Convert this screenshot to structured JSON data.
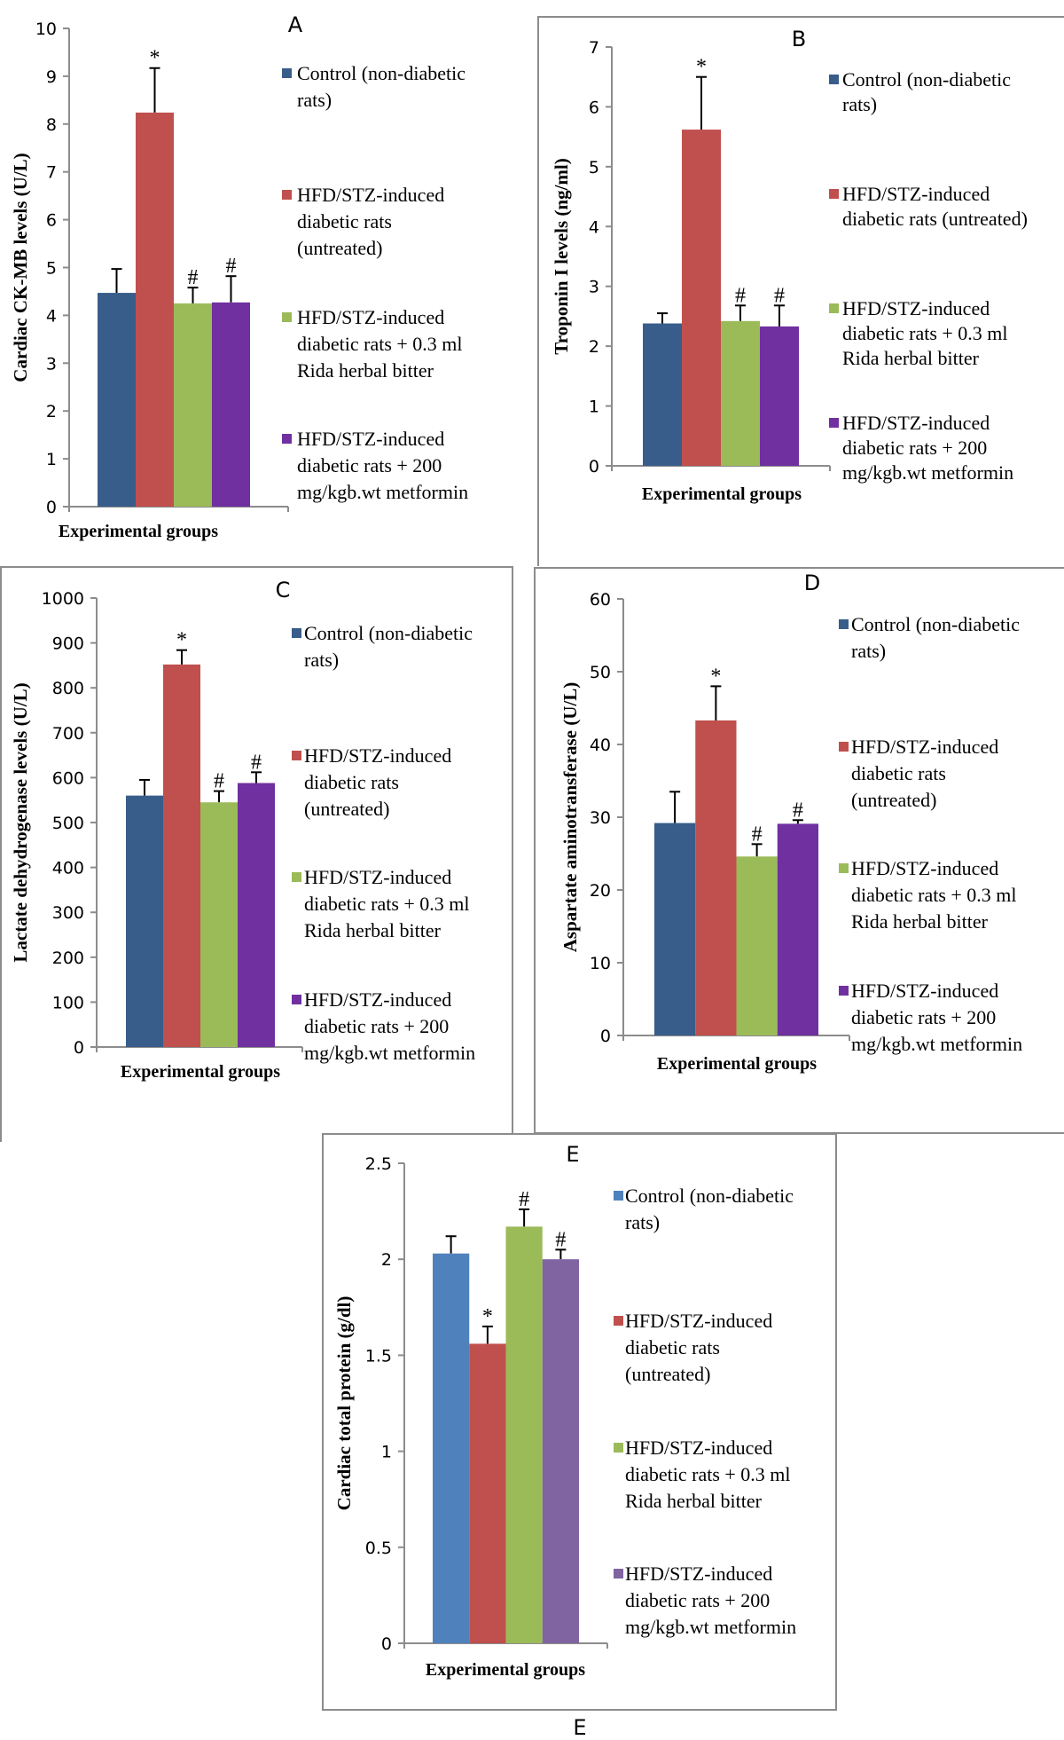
{
  "chart_data": [
    {
      "type": "bar",
      "panel": "A",
      "title": "A",
      "ylabel": "Cardiac CK-MB levels (U/L)",
      "xlabel": "Experimental groups",
      "ylim": [
        0,
        10
      ],
      "yticks": [
        0,
        1,
        2,
        3,
        4,
        5,
        6,
        7,
        8,
        9,
        10
      ],
      "categories": [
        "Control (non-diabetic rats)",
        "HFD/STZ-induced diabetic rats (untreated)",
        "HFD/STZ-induced diabetic rats + 0.3 ml Rida herbal bitter",
        "HFD/STZ-induced diabetic rats + 200 mg/kgb.wt metformin"
      ],
      "values": [
        4.47,
        8.24,
        4.25,
        4.27
      ],
      "error_upper": [
        0.5,
        0.93,
        0.33,
        0.55
      ],
      "significance": [
        "",
        "*",
        "#",
        "#"
      ],
      "legend_position": "right",
      "legend": [
        [
          "Control (non-diabetic",
          "rats)"
        ],
        [
          "HFD/STZ-induced",
          "diabetic rats",
          "(untreated)"
        ],
        [
          "HFD/STZ-induced",
          "diabetic rats + 0.3 ml",
          "Rida herbal bitter"
        ],
        [
          "HFD/STZ-induced",
          "diabetic rats + 200",
          "mg/kgb.wt metformin"
        ]
      ],
      "colors": [
        "#385D8A",
        "#C0504D",
        "#9BBB59",
        "#7030A0"
      ]
    },
    {
      "type": "bar",
      "panel": "B",
      "title": "B",
      "ylabel": "Troponin I levels (ng/ml)",
      "xlabel": "Experimental groups",
      "ylim": [
        0,
        7
      ],
      "yticks": [
        0,
        1,
        2,
        3,
        4,
        5,
        6,
        7
      ],
      "categories": [
        "Control (non-diabetic rats)",
        "HFD/STZ-induced diabetic rats (untreated)",
        "HFD/STZ-induced diabetic rats + 0.3 ml Rida herbal bitter",
        "HFD/STZ-induced diabetic rats + 200 mg/kgb.wt metformin"
      ],
      "values": [
        2.38,
        5.62,
        2.42,
        2.33
      ],
      "error_upper": [
        0.17,
        0.88,
        0.26,
        0.35
      ],
      "significance": [
        "",
        "*",
        "#",
        "#"
      ],
      "legend_position": "right",
      "legend": [
        [
          "Control (non-diabetic",
          "rats)"
        ],
        [
          "HFD/STZ-induced",
          "diabetic rats (untreated)"
        ],
        [
          "HFD/STZ-induced",
          "diabetic rats + 0.3 ml",
          "Rida herbal bitter"
        ],
        [
          "HFD/STZ-induced",
          "diabetic rats + 200",
          "mg/kgb.wt metformin"
        ]
      ],
      "colors": [
        "#385D8A",
        "#C0504D",
        "#9BBB59",
        "#7030A0"
      ]
    },
    {
      "type": "bar",
      "panel": "C",
      "title": "C",
      "ylabel": "Lactate dehydrogenase levels (U/L)",
      "xlabel": "Experimental groups",
      "ylim": [
        0,
        1000
      ],
      "yticks": [
        0,
        100,
        200,
        300,
        400,
        500,
        600,
        700,
        800,
        900,
        1000
      ],
      "categories": [
        "Control (non-diabetic rats)",
        "HFD/STZ-induced diabetic rats (untreated)",
        "HFD/STZ-induced diabetic rats + 0.3 ml Rida herbal bitter",
        "HFD/STZ-induced diabetic rats + 200 mg/kgb.wt metformin"
      ],
      "values": [
        560,
        852,
        545,
        588
      ],
      "error_upper": [
        35,
        32,
        25,
        24
      ],
      "significance": [
        "",
        "*",
        "#",
        "#"
      ],
      "legend_position": "right",
      "legend": [
        [
          "Control (non-diabetic",
          "rats)"
        ],
        [
          "HFD/STZ-induced",
          "diabetic rats",
          "(untreated)"
        ],
        [
          "HFD/STZ-induced",
          "diabetic rats + 0.3 ml",
          "Rida herbal bitter"
        ],
        [
          "HFD/STZ-induced",
          "diabetic rats + 200",
          "mg/kgb.wt metformin"
        ]
      ],
      "colors": [
        "#385D8A",
        "#C0504D",
        "#9BBB59",
        "#7030A0"
      ]
    },
    {
      "type": "bar",
      "panel": "D",
      "title": "D",
      "ylabel": "Aspartate aminotransferase (U/L)",
      "xlabel": "Experimental groups",
      "ylim": [
        0,
        60
      ],
      "yticks": [
        0,
        10,
        20,
        30,
        40,
        50,
        60
      ],
      "categories": [
        "Control (non-diabetic rats)",
        "HFD/STZ-induced diabetic rats (untreated)",
        "HFD/STZ-induced diabetic rats + 0.3 ml Rida herbal bitter",
        "HFD/STZ-induced diabetic rats + 200 mg/kgb.wt metformin"
      ],
      "values": [
        29.2,
        43.3,
        24.6,
        29.1
      ],
      "error_upper": [
        4.3,
        4.7,
        1.7,
        0.5
      ],
      "significance": [
        "",
        "*",
        "#",
        "#"
      ],
      "legend_position": "right",
      "legend": [
        [
          "Control (non-diabetic",
          "rats)"
        ],
        [
          "HFD/STZ-induced",
          "diabetic rats",
          "(untreated)"
        ],
        [
          "HFD/STZ-induced",
          "diabetic rats + 0.3 ml",
          "Rida herbal bitter"
        ],
        [
          "HFD/STZ-induced",
          "diabetic rats + 200",
          "mg/kgb.wt metformin"
        ]
      ],
      "colors": [
        "#385D8A",
        "#C0504D",
        "#9BBB59",
        "#7030A0"
      ]
    },
    {
      "type": "bar",
      "panel": "E",
      "title": "E",
      "caption": "E",
      "ylabel": "Cardiac total protein (g/dl)",
      "xlabel": "Experimental groups",
      "ylim": [
        0,
        2.5
      ],
      "yticks": [
        0,
        0.5,
        1,
        1.5,
        2,
        2.5
      ],
      "categories": [
        "Control (non-diabetic rats)",
        "HFD/STZ-induced diabetic rats (untreated)",
        "HFD/STZ-induced diabetic rats + 0.3 ml Rida herbal bitter",
        "HFD/STZ-induced diabetic rats + 200 mg/kgb.wt metformin"
      ],
      "values": [
        2.03,
        1.56,
        2.17,
        2.0
      ],
      "error_upper": [
        0.09,
        0.09,
        0.09,
        0.05
      ],
      "significance": [
        "",
        "*",
        "#",
        "#"
      ],
      "legend_position": "right",
      "legend": [
        [
          "Control (non-diabetic",
          "rats)"
        ],
        [
          "HFD/STZ-induced",
          "diabetic rats",
          "(untreated)"
        ],
        [
          "HFD/STZ-induced",
          "diabetic rats + 0.3 ml",
          "Rida herbal bitter"
        ],
        [
          "HFD/STZ-induced",
          "diabetic rats + 200",
          "mg/kgb.wt metformin"
        ]
      ],
      "colors": [
        "#4F81BD",
        "#C0504D",
        "#9BBB59",
        "#8064A2"
      ]
    }
  ]
}
